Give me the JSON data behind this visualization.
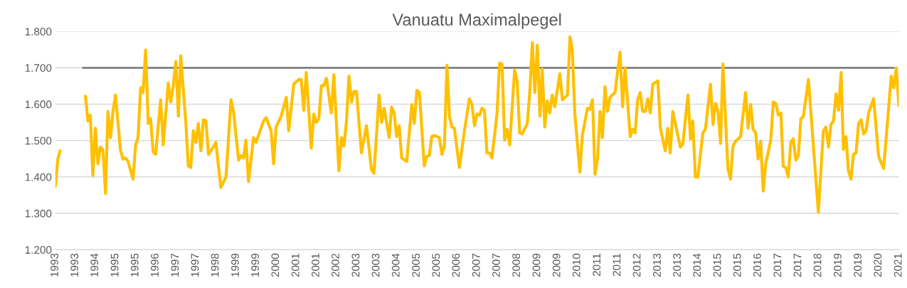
{
  "chart_data": {
    "type": "line",
    "title": "Vanuatu Maximalpegel",
    "xlim": [
      "1993-01",
      "2021-01"
    ],
    "xticks": [
      {
        "value": "1993-01",
        "label": "1993"
      },
      {
        "value": "1993-09",
        "label": "1993"
      },
      {
        "value": "1994-05",
        "label": "1994"
      },
      {
        "value": "1995-01",
        "label": "1995"
      },
      {
        "value": "1995-09",
        "label": "1995"
      },
      {
        "value": "1996-05",
        "label": "1996"
      },
      {
        "value": "1997-01",
        "label": "1997"
      },
      {
        "value": "1997-09",
        "label": "1997"
      },
      {
        "value": "1998-05",
        "label": "1998"
      },
      {
        "value": "1999-01",
        "label": "1999"
      },
      {
        "value": "1999-09",
        "label": "1999"
      },
      {
        "value": "2000-05",
        "label": "2000"
      },
      {
        "value": "2001-01",
        "label": "2001"
      },
      {
        "value": "2001-09",
        "label": "2001"
      },
      {
        "value": "2002-05",
        "label": "2002"
      },
      {
        "value": "2003-01",
        "label": "2003"
      },
      {
        "value": "2003-09",
        "label": "2003"
      },
      {
        "value": "2004-05",
        "label": "2004"
      },
      {
        "value": "2005-01",
        "label": "2005"
      },
      {
        "value": "2005-09",
        "label": "2005"
      },
      {
        "value": "2006-05",
        "label": "2006"
      },
      {
        "value": "2007-01",
        "label": "2007"
      },
      {
        "value": "2007-09",
        "label": "2007"
      },
      {
        "value": "2008-05",
        "label": "2008"
      },
      {
        "value": "2009-01",
        "label": "2009"
      },
      {
        "value": "2009-09",
        "label": "2009"
      },
      {
        "value": "2010-05",
        "label": "2010"
      },
      {
        "value": "2011-01",
        "label": "2011"
      },
      {
        "value": "2011-09",
        "label": "2011"
      },
      {
        "value": "2012-05",
        "label": "2012"
      },
      {
        "value": "2013-01",
        "label": "2013"
      },
      {
        "value": "2013-09",
        "label": "2013"
      },
      {
        "value": "2014-05",
        "label": "2014"
      },
      {
        "value": "2015-01",
        "label": "2015"
      },
      {
        "value": "2015-09",
        "label": "2015"
      },
      {
        "value": "2016-05",
        "label": "2016"
      },
      {
        "value": "2017-01",
        "label": "2017"
      },
      {
        "value": "2017-09",
        "label": "2017"
      },
      {
        "value": "2018-05",
        "label": "2018"
      },
      {
        "value": "2019-01",
        "label": "2019"
      },
      {
        "value": "2019-09",
        "label": "2019"
      },
      {
        "value": "2020-05",
        "label": "2020"
      },
      {
        "value": "2021-01",
        "label": "2021"
      }
    ],
    "ylim": [
      1.2,
      1.8
    ],
    "yticks": [
      {
        "value": 1.2,
        "label": "1.200"
      },
      {
        "value": 1.3,
        "label": "1.300"
      },
      {
        "value": 1.4,
        "label": "1.400"
      },
      {
        "value": 1.5,
        "label": "1.500"
      },
      {
        "value": 1.6,
        "label": "1.600"
      },
      {
        "value": 1.7,
        "label": "1.700"
      },
      {
        "value": 1.8,
        "label": "1.800"
      }
    ],
    "grid": "y",
    "marker": "none",
    "line_style": "solid",
    "series": [
      {
        "color": "#7f7f7f",
        "x": [
          "1993-12",
          "2020-11"
        ],
        "values": [
          1.7,
          1.7
        ]
      },
      {
        "color": "#ffc000",
        "x": [
          "1993-01",
          "1993-02",
          "1993-03",
          "1993-06",
          "1994-01",
          "1994-02",
          "1994-03",
          "1994-04",
          "1994-05",
          "1994-06",
          "1994-07",
          "1994-08",
          "1994-09",
          "1994-10",
          "1994-11",
          "1994-12",
          "1995-01",
          "1995-03",
          "1995-04",
          "1995-05",
          "1995-06",
          "1995-08",
          "1995-09",
          "1995-10",
          "1995-11",
          "1995-12",
          "1996-01",
          "1996-02",
          "1996-03",
          "1996-04",
          "1996-05",
          "1996-07",
          "1996-08",
          "1996-10",
          "1996-11",
          "1996-12",
          "1997-01",
          "1997-02",
          "1997-03",
          "1997-05",
          "1997-06",
          "1997-07",
          "1997-08",
          "1997-09",
          "1997-10",
          "1997-11",
          "1997-12",
          "1998-01",
          "1998-02",
          "1998-04",
          "1998-05",
          "1998-07",
          "1998-09",
          "1998-11",
          "1998-12",
          "1999-02",
          "1999-03",
          "1999-04",
          "1999-05",
          "1999-06",
          "1999-08",
          "1999-09",
          "1999-12",
          "2000-01",
          "2000-03",
          "2000-04",
          "2000-05",
          "2000-07",
          "2000-09",
          "2000-10",
          "2000-12",
          "2001-02",
          "2001-03",
          "2001-04",
          "2001-05",
          "2001-07",
          "2001-08",
          "2001-09",
          "2001-10",
          "2001-11",
          "2001-12",
          "2002-01",
          "2002-03",
          "2002-04",
          "2002-06",
          "2002-07",
          "2002-08",
          "2002-09",
          "2002-10",
          "2002-11",
          "2002-12",
          "2003-01",
          "2003-03",
          "2003-05",
          "2003-07",
          "2003-08",
          "2003-10",
          "2003-11",
          "2003-12",
          "2004-02",
          "2004-03",
          "2004-04",
          "2004-05",
          "2004-06",
          "2004-07",
          "2004-09",
          "2004-11",
          "2004-12",
          "2005-01",
          "2005-02",
          "2005-04",
          "2005-05",
          "2005-06",
          "2005-07",
          "2005-08",
          "2005-10",
          "2005-11",
          "2005-12",
          "2006-01",
          "2006-02",
          "2006-03",
          "2006-04",
          "2006-06",
          "2006-08",
          "2006-10",
          "2006-11",
          "2006-12",
          "2007-01",
          "2007-02",
          "2007-03",
          "2007-04",
          "2007-05",
          "2007-06",
          "2007-07",
          "2007-09",
          "2007-10",
          "2007-11",
          "2007-12",
          "2008-01",
          "2008-02",
          "2008-04",
          "2008-05",
          "2008-06",
          "2008-07",
          "2008-09",
          "2008-10",
          "2008-11",
          "2008-12",
          "2009-01",
          "2009-02",
          "2009-03",
          "2009-04",
          "2009-05",
          "2009-06",
          "2009-07",
          "2009-08",
          "2009-10",
          "2009-11",
          "2010-01",
          "2010-02",
          "2010-03",
          "2010-04",
          "2010-06",
          "2010-07",
          "2010-09",
          "2010-10",
          "2010-11",
          "2010-12",
          "2011-01",
          "2011-02",
          "2011-03",
          "2011-04",
          "2011-05",
          "2011-06",
          "2011-08",
          "2011-10",
          "2011-11",
          "2011-12",
          "2012-02",
          "2012-03",
          "2012-04",
          "2012-05",
          "2012-06",
          "2012-07",
          "2012-08",
          "2012-09",
          "2012-10",
          "2012-11",
          "2013-01",
          "2013-02",
          "2013-04",
          "2013-05",
          "2013-06",
          "2013-07",
          "2013-08",
          "2013-10",
          "2013-11",
          "2014-01",
          "2014-02",
          "2014-03",
          "2014-04",
          "2014-05",
          "2014-07",
          "2014-08",
          "2014-10",
          "2014-11",
          "2014-12",
          "2015-01",
          "2015-02",
          "2015-03",
          "2015-05",
          "2015-06",
          "2015-07",
          "2015-08",
          "2015-10",
          "2015-12",
          "2016-01",
          "2016-02",
          "2016-03",
          "2016-04",
          "2016-05",
          "2016-06",
          "2016-07",
          "2016-08",
          "2016-10",
          "2016-11",
          "2016-12",
          "2017-01",
          "2017-02",
          "2017-03",
          "2017-04",
          "2017-05",
          "2017-06",
          "2017-07",
          "2017-08",
          "2017-09",
          "2017-10",
          "2017-11",
          "2018-01",
          "2018-05",
          "2018-07",
          "2018-08",
          "2018-09",
          "2018-10",
          "2018-11",
          "2018-12",
          "2019-01",
          "2019-02",
          "2019-03",
          "2019-04",
          "2019-05",
          "2019-06",
          "2019-07",
          "2019-08",
          "2019-09",
          "2019-10",
          "2019-11",
          "2019-12",
          "2020-01",
          "2020-03",
          "2020-05",
          "2020-07",
          "2020-10",
          "2020-11",
          "2020-12",
          "2021-01"
        ],
        "values": [
          1.374,
          1.45,
          1.472,
          null,
          1.622,
          1.554,
          1.57,
          1.404,
          1.534,
          1.436,
          1.482,
          1.475,
          1.355,
          1.58,
          1.508,
          1.58,
          1.625,
          1.475,
          1.449,
          1.452,
          1.443,
          1.394,
          1.488,
          1.508,
          1.645,
          1.632,
          1.749,
          1.547,
          1.56,
          1.469,
          1.462,
          1.612,
          1.488,
          1.658,
          1.606,
          1.651,
          1.717,
          1.567,
          1.733,
          1.554,
          1.43,
          1.426,
          1.527,
          1.495,
          1.547,
          1.472,
          1.557,
          1.554,
          1.462,
          1.482,
          1.495,
          1.371,
          1.4,
          1.612,
          1.58,
          1.446,
          1.459,
          1.452,
          1.501,
          1.387,
          1.508,
          1.495,
          1.554,
          1.563,
          1.527,
          1.436,
          1.537,
          1.567,
          1.619,
          1.527,
          1.655,
          1.668,
          1.668,
          1.583,
          1.687,
          1.479,
          1.573,
          1.55,
          1.56,
          1.651,
          1.651,
          1.671,
          1.576,
          1.681,
          1.417,
          1.508,
          1.485,
          1.554,
          1.677,
          1.606,
          1.635,
          1.635,
          1.466,
          1.541,
          1.42,
          1.41,
          1.625,
          1.55,
          1.589,
          1.508,
          1.592,
          1.576,
          1.511,
          1.541,
          1.452,
          1.443,
          1.599,
          1.547,
          1.638,
          1.632,
          1.43,
          1.456,
          1.459,
          1.511,
          1.514,
          1.508,
          1.462,
          1.485,
          1.707,
          1.567,
          1.537,
          1.534,
          1.426,
          1.527,
          1.615,
          1.599,
          1.541,
          1.573,
          1.57,
          1.589,
          1.583,
          1.466,
          1.466,
          1.452,
          1.576,
          1.713,
          1.71,
          1.501,
          1.531,
          1.488,
          1.694,
          1.664,
          1.521,
          1.518,
          1.547,
          1.632,
          1.769,
          1.632,
          1.762,
          1.567,
          1.697,
          1.537,
          1.609,
          1.576,
          1.625,
          1.593,
          1.684,
          1.612,
          1.625,
          1.785,
          1.749,
          1.573,
          1.413,
          1.514,
          1.589,
          1.586,
          1.612,
          1.407,
          1.449,
          1.58,
          1.508,
          1.648,
          1.58,
          1.619,
          1.632,
          1.743,
          1.593,
          1.7,
          1.511,
          1.531,
          1.521,
          1.612,
          1.632,
          1.58,
          1.58,
          1.615,
          1.576,
          1.655,
          1.664,
          1.534,
          1.472,
          1.534,
          1.466,
          1.58,
          1.547,
          1.482,
          1.492,
          1.625,
          1.505,
          1.554,
          1.4,
          1.4,
          1.521,
          1.531,
          1.655,
          1.544,
          1.602,
          1.58,
          1.492,
          1.71,
          1.423,
          1.394,
          1.485,
          1.498,
          1.511,
          1.632,
          1.534,
          1.599,
          1.531,
          1.521,
          1.449,
          1.498,
          1.361,
          1.436,
          1.501,
          1.606,
          1.602,
          1.57,
          1.576,
          1.43,
          1.426,
          1.4,
          1.495,
          1.505,
          1.446,
          1.459,
          1.56,
          1.567,
          1.668,
          1.303,
          1.527,
          1.537,
          1.482,
          1.544,
          1.554,
          1.628,
          1.583,
          1.687,
          1.475,
          1.511,
          1.417,
          1.394,
          1.462,
          1.466,
          1.547,
          1.557,
          1.518,
          1.527,
          1.576,
          1.615,
          1.456,
          1.423,
          1.677,
          1.645,
          1.7,
          1.596
        ]
      }
    ]
  }
}
